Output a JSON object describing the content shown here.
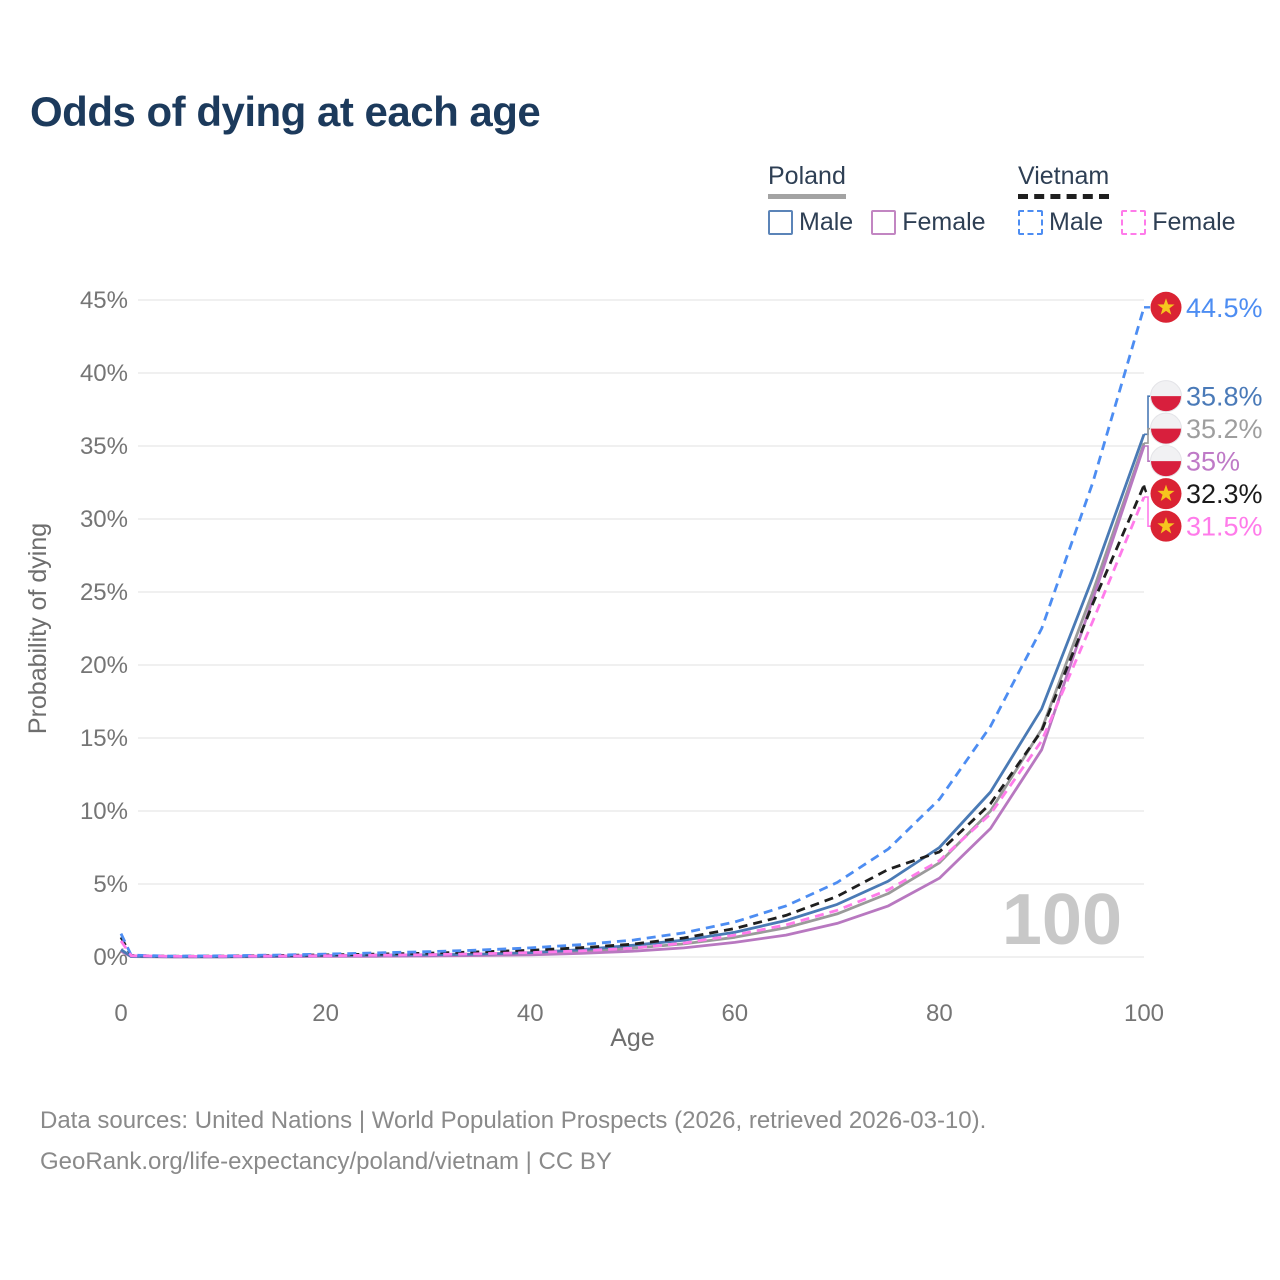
{
  "title": "Odds of dying at each age",
  "legend": {
    "groups": [
      {
        "id": "poland",
        "label": "Poland",
        "underline_color": "#a3a3a3",
        "underline_style": "solid",
        "items": [
          {
            "id": "poland-male",
            "label": "Male",
            "color": "#5b84b8",
            "style": "solid"
          },
          {
            "id": "poland-female",
            "label": "Female",
            "color": "#c286c2",
            "style": "solid"
          }
        ]
      },
      {
        "id": "vietnam",
        "label": "Vietnam",
        "underline_color": "#1f1f1f",
        "underline_style": "dashed",
        "items": [
          {
            "id": "vietnam-male",
            "label": "Male",
            "color": "#4d8df2",
            "style": "dashed"
          },
          {
            "id": "vietnam-female",
            "label": "Female",
            "color": "#ff7bea",
            "style": "dashed"
          }
        ]
      }
    ]
  },
  "chart_data": {
    "type": "line",
    "title": "Odds of dying at each age",
    "xlabel": "Age",
    "ylabel": "Probability of dying",
    "xlim": [
      0,
      100
    ],
    "ylim": [
      0,
      45
    ],
    "grid": true,
    "legend_position": "top-right",
    "watermark": "100",
    "x_ticks": [
      {
        "v": 0,
        "label": "0"
      },
      {
        "v": 20,
        "label": "20"
      },
      {
        "v": 40,
        "label": "40"
      },
      {
        "v": 60,
        "label": "60"
      },
      {
        "v": 80,
        "label": "80"
      },
      {
        "v": 100,
        "label": "100"
      }
    ],
    "y_ticks": [
      {
        "v": 0,
        "label": "0%"
      },
      {
        "v": 5,
        "label": "5%"
      },
      {
        "v": 10,
        "label": "10%"
      },
      {
        "v": 15,
        "label": "15%"
      },
      {
        "v": 20,
        "label": "20%"
      },
      {
        "v": 25,
        "label": "25%"
      },
      {
        "v": 30,
        "label": "30%"
      },
      {
        "v": 35,
        "label": "35%"
      },
      {
        "v": 40,
        "label": "40%"
      },
      {
        "v": 45,
        "label": "45%"
      }
    ],
    "ages": [
      0,
      1,
      5,
      10,
      15,
      20,
      25,
      30,
      35,
      40,
      45,
      50,
      55,
      60,
      65,
      70,
      75,
      80,
      85,
      90,
      95,
      100
    ],
    "series": [
      {
        "id": "poland-total",
        "name": "Poland",
        "country": "poland",
        "color": "#9a9a9a",
        "dash": "solid",
        "end_label": "35.2%",
        "label_color": "#9e9e9e",
        "values": [
          0.45,
          0.03,
          0.015,
          0.015,
          0.045,
          0.07,
          0.09,
          0.11,
          0.15,
          0.22,
          0.37,
          0.6,
          0.9,
          1.35,
          2.0,
          2.95,
          4.35,
          6.45,
          10.0,
          15.6,
          25.0,
          35.2
        ]
      },
      {
        "id": "poland-female",
        "name": "Poland Female",
        "country": "poland",
        "color": "#b878c0",
        "dash": "solid",
        "end_label": "35%",
        "label_color": "#bf7ac7",
        "values": [
          0.4,
          0.03,
          0.01,
          0.01,
          0.03,
          0.04,
          0.05,
          0.07,
          0.1,
          0.15,
          0.25,
          0.4,
          0.62,
          1.0,
          1.5,
          2.3,
          3.5,
          5.4,
          8.8,
          14.2,
          24.5,
          35.0
        ]
      },
      {
        "id": "poland-male",
        "name": "Poland Male",
        "country": "poland",
        "color": "#4a7ab5",
        "dash": "solid",
        "end_label": "35.8%",
        "label_color": "#4a7ab8",
        "values": [
          0.5,
          0.04,
          0.02,
          0.02,
          0.06,
          0.1,
          0.12,
          0.15,
          0.2,
          0.3,
          0.5,
          0.8,
          1.15,
          1.7,
          2.5,
          3.6,
          5.2,
          7.5,
          11.3,
          17.0,
          26.0,
          35.8
        ]
      },
      {
        "id": "vietnam-total",
        "name": "Vietnam",
        "country": "vietnam",
        "color": "#1f1f1f",
        "dash": "dashed",
        "end_label": "32.3%",
        "label_color": "#1a1a1a",
        "values": [
          1.35,
          0.1,
          0.05,
          0.065,
          0.1,
          0.145,
          0.2,
          0.26,
          0.35,
          0.46,
          0.64,
          0.88,
          1.3,
          1.95,
          2.85,
          4.15,
          6.0,
          7.2,
          10.5,
          15.5,
          24.2,
          32.3
        ]
      },
      {
        "id": "vietnam-male",
        "name": "Vietnam Male",
        "country": "vietnam",
        "color": "#4d8df2",
        "dash": "dashed",
        "end_label": "44.5%",
        "label_color": "#4d8df2",
        "values": [
          1.6,
          0.12,
          0.06,
          0.08,
          0.13,
          0.2,
          0.28,
          0.36,
          0.47,
          0.62,
          0.85,
          1.15,
          1.65,
          2.4,
          3.5,
          5.1,
          7.4,
          10.8,
          15.8,
          22.5,
          32.5,
          44.5
        ]
      },
      {
        "id": "vietnam-female",
        "name": "Vietnam Female",
        "country": "vietnam",
        "color": "#ff7bea",
        "dash": "dashed",
        "end_label": "31.5%",
        "label_color": "#ff7bea",
        "values": [
          1.1,
          0.09,
          0.04,
          0.05,
          0.07,
          0.09,
          0.12,
          0.16,
          0.22,
          0.3,
          0.42,
          0.6,
          0.95,
          1.5,
          2.2,
          3.2,
          4.6,
          6.6,
          9.8,
          14.8,
          23.0,
          31.5
        ]
      }
    ],
    "flag_colors": {
      "vietnam_red": "#da2333",
      "star_gold": "#f6c51e",
      "poland_white": "#f1f1f3",
      "poland_red": "#d81f3d"
    },
    "axis_text_color": "#757575",
    "grid_color": "#e8e8e8",
    "watermark_color": "#c8c8c8"
  },
  "footer": {
    "line1": "Data sources: United Nations | World Population Prospects (2026, retrieved 2026-03-10).",
    "line2": "GeoRank.org/life-expectancy/poland/vietnam | CC BY"
  }
}
